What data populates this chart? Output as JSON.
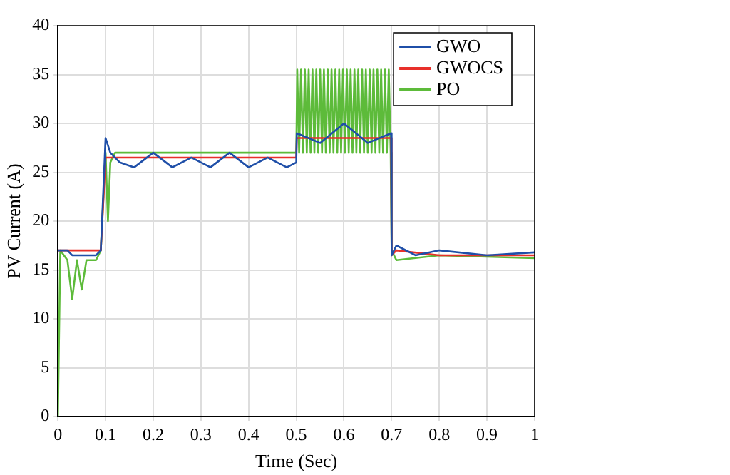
{
  "chart_data": {
    "type": "line",
    "xlabel": "Time (Sec)",
    "ylabel": "PV Current (A)",
    "xlim": [
      0,
      1
    ],
    "xticks": [
      0,
      0.1,
      0.2,
      0.3,
      0.4,
      0.5,
      0.6,
      0.7,
      0.8,
      0.9,
      1
    ],
    "ylim": [
      0,
      40
    ],
    "yticks": [
      0,
      5,
      10,
      15,
      20,
      25,
      30,
      35,
      40
    ],
    "grid": true,
    "legend": "top right",
    "marker": "none",
    "line_style": "solid",
    "series": [
      {
        "name": "GWO",
        "color": "#1f4fa8",
        "x": [
          0,
          0.02,
          0.03,
          0.06,
          0.08,
          0.09,
          0.1,
          0.11,
          0.13,
          0.16,
          0.2,
          0.24,
          0.28,
          0.32,
          0.36,
          0.4,
          0.44,
          0.48,
          0.5,
          0.501,
          0.55,
          0.6,
          0.65,
          0.699,
          0.7,
          0.71,
          0.75,
          0.8,
          0.9,
          1
        ],
        "values": [
          17,
          17,
          16.5,
          16.5,
          16.5,
          17,
          28.5,
          27,
          26,
          25.5,
          27,
          25.5,
          26.5,
          25.5,
          27,
          25.5,
          26.5,
          25.5,
          26,
          29,
          28,
          30,
          28,
          29,
          16.5,
          17.5,
          16.5,
          17,
          16.5,
          16.8
        ]
      },
      {
        "name": "GWOCS",
        "color": "#e8302a",
        "x": [
          0,
          0.02,
          0.09,
          0.1,
          0.12,
          0.3,
          0.5,
          0.501,
          0.6,
          0.699,
          0.7,
          0.71,
          0.8,
          1
        ],
        "values": [
          17,
          17,
          17,
          26.5,
          26.5,
          26.5,
          26.5,
          28.5,
          28.5,
          28.5,
          16.5,
          17,
          16.5,
          16.5
        ]
      },
      {
        "name": "PO",
        "color": "#5dbb3a",
        "x": [
          0,
          0.005,
          0.02,
          0.03,
          0.04,
          0.05,
          0.06,
          0.08,
          0.09,
          0.1,
          0.105,
          0.11,
          0.12,
          0.2,
          0.3,
          0.4,
          0.5,
          0.502,
          0.506,
          0.51,
          0.514,
          0.518,
          0.522,
          0.526,
          0.53,
          0.534,
          0.538,
          0.542,
          0.546,
          0.55,
          0.554,
          0.558,
          0.562,
          0.566,
          0.57,
          0.574,
          0.578,
          0.582,
          0.586,
          0.59,
          0.594,
          0.598,
          0.602,
          0.606,
          0.61,
          0.614,
          0.618,
          0.622,
          0.626,
          0.63,
          0.634,
          0.638,
          0.642,
          0.646,
          0.65,
          0.654,
          0.658,
          0.662,
          0.666,
          0.67,
          0.674,
          0.678,
          0.682,
          0.686,
          0.69,
          0.694,
          0.698,
          0.7,
          0.71,
          0.8,
          1
        ],
        "values": [
          0,
          17,
          16,
          12,
          16,
          13,
          16,
          16,
          17,
          27,
          20,
          26,
          27,
          27,
          27,
          27,
          27,
          35.5,
          27,
          35.5,
          27,
          35.5,
          27,
          35.5,
          27,
          35.5,
          27,
          35.5,
          27,
          35.5,
          27,
          35.5,
          27,
          35.5,
          27,
          35.5,
          27,
          35.5,
          27,
          35.5,
          27,
          35.5,
          27,
          35.5,
          27,
          35.5,
          27,
          35.5,
          27,
          35.5,
          27,
          35.5,
          27,
          35.5,
          27,
          35.5,
          27,
          35.5,
          27,
          35.5,
          27,
          35.5,
          27,
          35.5,
          27,
          35.5,
          27,
          17,
          16,
          16.5,
          16.2
        ]
      }
    ]
  }
}
